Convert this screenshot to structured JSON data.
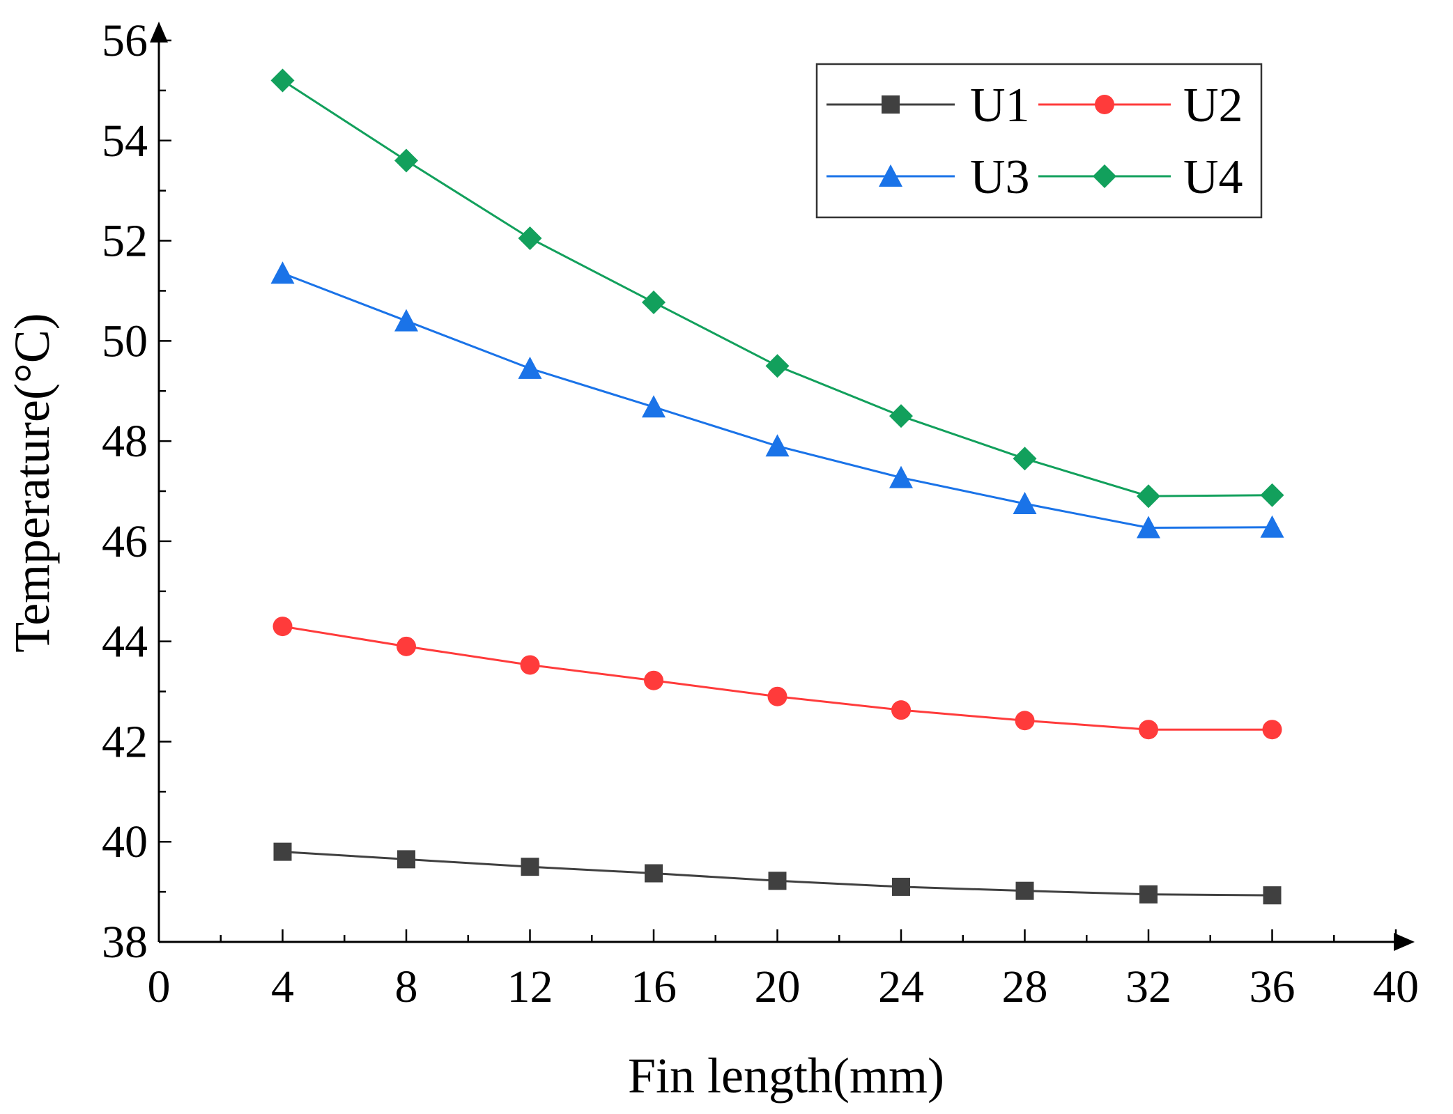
{
  "chart_data": {
    "type": "line",
    "title": "",
    "xlabel": "Fin length(mm)",
    "ylabel": "Temperature(°C)",
    "xlim": [
      0,
      40
    ],
    "ylim": [
      38,
      56
    ],
    "xticks": [
      0,
      4,
      8,
      12,
      16,
      20,
      24,
      28,
      32,
      36,
      40
    ],
    "yticks": [
      38,
      40,
      42,
      44,
      46,
      48,
      50,
      52,
      54,
      56
    ],
    "xtick_labels": [
      "0",
      "4",
      "8",
      "12",
      "16",
      "20",
      "24",
      "28",
      "32",
      "36",
      "40"
    ],
    "ytick_labels": [
      "38",
      "40",
      "42",
      "44",
      "46",
      "48",
      "50",
      "52",
      "54",
      "56"
    ],
    "grid": false,
    "legend_position": "top-right",
    "x": [
      4,
      8,
      12,
      16,
      20,
      24,
      28,
      32,
      36
    ],
    "series": [
      {
        "name": "U1",
        "color": "#404040",
        "marker": "square",
        "values": [
          39.8,
          39.65,
          39.5,
          39.37,
          39.22,
          39.1,
          39.02,
          38.95,
          38.93
        ]
      },
      {
        "name": "U2",
        "color": "#ff3b3b",
        "marker": "circle",
        "values": [
          44.3,
          43.9,
          43.53,
          43.22,
          42.9,
          42.63,
          42.42,
          42.24,
          42.24
        ]
      },
      {
        "name": "U3",
        "color": "#1a73e8",
        "marker": "triangle",
        "values": [
          51.35,
          50.4,
          49.45,
          48.68,
          47.9,
          47.27,
          46.75,
          46.27,
          46.28
        ]
      },
      {
        "name": "U4",
        "color": "#12a05c",
        "marker": "diamond",
        "values": [
          55.2,
          53.6,
          52.05,
          50.77,
          49.5,
          48.5,
          47.65,
          46.9,
          46.92
        ]
      }
    ]
  }
}
